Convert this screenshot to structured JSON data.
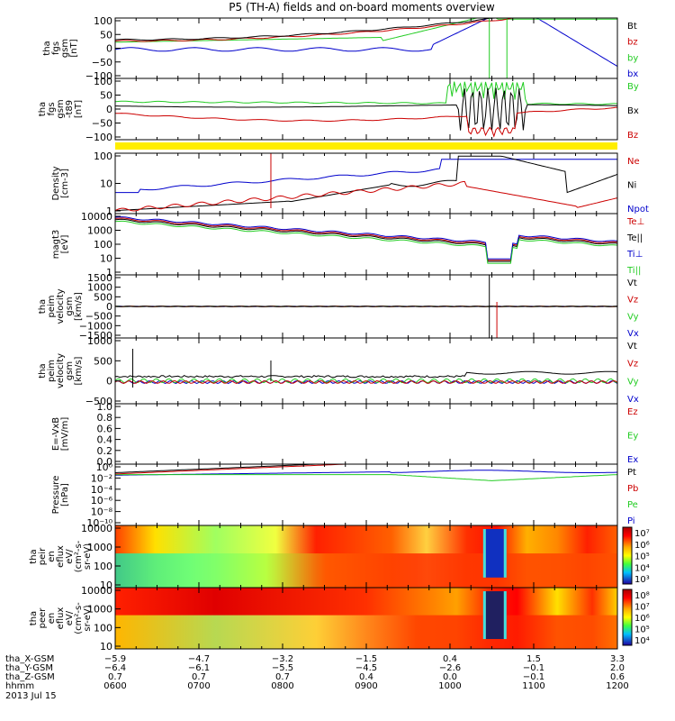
{
  "chart_data": {
    "type": "line",
    "title": "P5 (TH-A) fields and on-board moments overview",
    "panels": [
      {
        "id": "fgs",
        "ylabel": [
          "tha",
          "fgs",
          "gsm",
          "[nT]"
        ],
        "yticks": [
          "100",
          "50",
          "0",
          "−50",
          "−100"
        ],
        "ylim": [
          -100,
          100
        ],
        "legend": [
          {
            "text": "Bt",
            "color": "#000000"
          },
          {
            "text": "bz",
            "color": "#cc0000"
          },
          {
            "text": "by",
            "color": "#22cc22"
          },
          {
            "text": "bx",
            "color": "#0000cc"
          }
        ]
      },
      {
        "id": "fgs2",
        "ylabel": [
          "tha",
          "fgs",
          "gsm",
          "-t89",
          "[nT]"
        ],
        "yticks": [
          "100",
          "50",
          "0",
          "−50",
          "−100"
        ],
        "ylim": [
          -120,
          100
        ],
        "legend": [
          {
            "text": "By",
            "color": "#22cc22"
          },
          {
            "text": "Bx",
            "color": "#000000"
          },
          {
            "text": "Bz",
            "color": "#cc0000"
          }
        ]
      },
      {
        "id": "dens",
        "ylabel": [
          "Density",
          "[cm-3]"
        ],
        "yticks": [
          "100",
          "10",
          "1"
        ],
        "ylim": [
          1,
          200
        ],
        "log": true,
        "legend": [
          {
            "text": "Ne",
            "color": "#cc0000"
          },
          {
            "text": "Ni",
            "color": "#000000"
          },
          {
            "text": "Npot",
            "color": "#0000cc"
          }
        ]
      },
      {
        "id": "temp",
        "ylabel": [
          "magt3",
          "[eV]"
        ],
        "yticks": [
          "10000",
          "1000",
          "100",
          "10",
          "1"
        ],
        "ylim": [
          1,
          10000
        ],
        "log": true,
        "legend": [
          {
            "text": "Te⊥",
            "color": "#cc0000"
          },
          {
            "text": "Te||",
            "color": "#000000"
          },
          {
            "text": "Ti⊥",
            "color": "#0000cc"
          },
          {
            "text": "Ti||",
            "color": "#22cc22"
          }
        ]
      },
      {
        "id": "veli",
        "ylabel": [
          "tha",
          "peim",
          "velocity",
          "gsm",
          "[km/s]"
        ],
        "yticks": [
          "1500",
          "1000",
          "500",
          "0",
          "−500",
          "−1000",
          "−1500"
        ],
        "ylim": [
          -1500,
          1500
        ],
        "legend": [
          {
            "text": "Vt",
            "color": "#000000"
          },
          {
            "text": "Vz",
            "color": "#cc0000"
          },
          {
            "text": "Vy",
            "color": "#22cc22"
          },
          {
            "text": "Vx",
            "color": "#0000cc"
          }
        ]
      },
      {
        "id": "vele",
        "ylabel": [
          "tha",
          "peim",
          "velocity",
          "gsm",
          "[km/s]"
        ],
        "yticks": [
          "1000",
          "500",
          "0",
          "−500"
        ],
        "ylim": [
          -700,
          1200
        ],
        "legend": [
          {
            "text": "Vt",
            "color": "#000000"
          },
          {
            "text": "Vz",
            "color": "#cc0000"
          },
          {
            "text": "Vy",
            "color": "#22cc22"
          },
          {
            "text": "Vx",
            "color": "#0000cc"
          }
        ]
      },
      {
        "id": "efield",
        "ylabel": [
          "E=-VxB",
          "[mV/m]"
        ],
        "yticks": [
          "1.0",
          "0.8",
          "0.6",
          "0.4",
          "0.2",
          "0.0"
        ],
        "ylim": [
          0,
          1
        ],
        "legend": [
          {
            "text": "Ez",
            "color": "#cc0000"
          },
          {
            "text": "Ey",
            "color": "#22cc22"
          },
          {
            "text": "Ex",
            "color": "#0000cc"
          }
        ]
      },
      {
        "id": "press",
        "ylabel": [
          "Pressure",
          "[nPa]"
        ],
        "yticks": [
          "10⁰",
          "10⁻²",
          "10⁻⁴",
          "10⁻⁶",
          "10⁻⁸",
          "10⁻¹⁰"
        ],
        "ylim": [
          -10,
          1
        ],
        "log": true,
        "legend": [
          {
            "text": "Pt",
            "color": "#000000"
          },
          {
            "text": "Pb",
            "color": "#cc0000"
          },
          {
            "text": "Pe",
            "color": "#22cc22"
          },
          {
            "text": "Pi",
            "color": "#0000cc"
          }
        ]
      },
      {
        "id": "ieflux",
        "ylabel": [
          "tha",
          "peir",
          "en",
          "eflux",
          "eV/",
          "(cm²-s-",
          "sr-eV)"
        ],
        "yticks": [
          "10000",
          "1000",
          "100",
          "10"
        ],
        "ylim": [
          5,
          20000
        ],
        "log": true,
        "colorbar": [
          "10⁷",
          "10⁶",
          "10⁵",
          "10⁴",
          "10³"
        ]
      },
      {
        "id": "eeflux",
        "ylabel": [
          "tha",
          "peer",
          "en",
          "eflux",
          "eV/",
          "(cm²-s-",
          "sr-eV)"
        ],
        "yticks": [
          "10000",
          "1000",
          "100",
          "10"
        ],
        "ylim": [
          5,
          20000
        ],
        "log": true,
        "colorbar": [
          "10⁸",
          "10⁷",
          "10⁶",
          "10⁵",
          "10⁴"
        ]
      }
    ],
    "x_ticks": {
      "hhmm": [
        "0600",
        "0700",
        "0800",
        "0900",
        "1000",
        "1100",
        "1200"
      ],
      "tha_X_GSM": [
        "−5.9",
        "−4.7",
        "−3.2",
        "−1.5",
        "0.4",
        "1.5",
        "3.3"
      ],
      "tha_Y_GSM": [
        "−6.4",
        "−6.1",
        "−5.5",
        "−4.5",
        "−2.6",
        "−0.1",
        "2.0"
      ],
      "tha_Z_GSM": [
        "0.7",
        "0.7",
        "0.7",
        "0.4",
        "0.0",
        "−0.1",
        "0.6"
      ]
    },
    "footer_labels": {
      "x": "tha_X-GSM",
      "y": "tha_Y-GSM",
      "z": "tha_Z-GSM",
      "t": "hhmm",
      "date": "2013 Jul 15"
    }
  }
}
